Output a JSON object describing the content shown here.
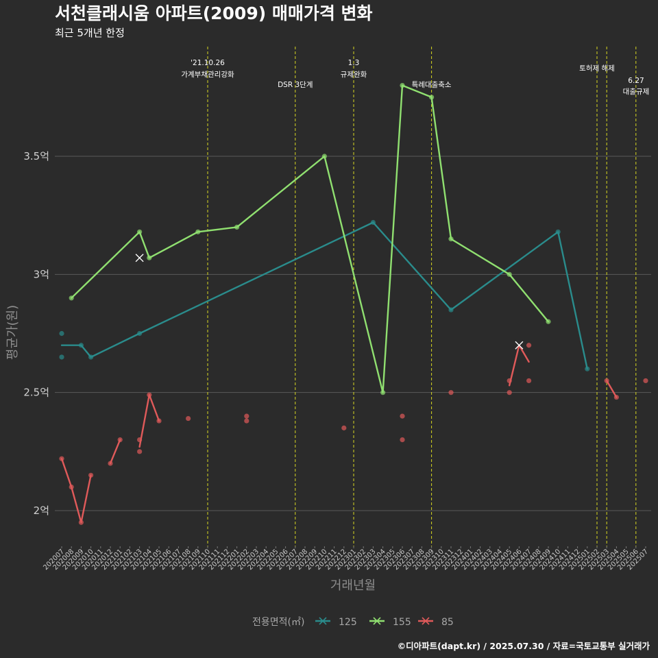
{
  "header": {
    "title": "서천클래시움 아파트(2009) 매매가격 변화",
    "subtitle": "최근 5개년 한정"
  },
  "caption": "©디아파트(dapt.kr) / 2025.07.30 / 자료=국토교통부 실거래가",
  "legend": {
    "title": "전용면적(㎡)",
    "items": [
      {
        "label": "125",
        "color": "#2a8c8c"
      },
      {
        "label": "155",
        "color": "#90e070"
      },
      {
        "label": "85",
        "color": "#e05a5a"
      }
    ]
  },
  "chart_data": {
    "type": "line",
    "title": "서천클래시움 아파트(2009) 매매가격 변화",
    "subtitle": "최근 5개년 한정",
    "xlabel": "거래년월",
    "ylabel": "평균가(원)",
    "ylim": [
      1.85,
      3.92
    ],
    "y_ticks": [
      2.0,
      2.5,
      3.0,
      3.5
    ],
    "y_tick_labels": [
      "2억",
      "2.5억",
      "3억",
      "3.5억"
    ],
    "grid": true,
    "legend_position": "bottom",
    "categories": [
      "202007",
      "202008",
      "202009",
      "202010",
      "202011",
      "202012",
      "202101",
      "202102",
      "202103",
      "202104",
      "202105",
      "202106",
      "202107",
      "202108",
      "202109",
      "202110",
      "202111",
      "202112",
      "202201",
      "202202",
      "202203",
      "202204",
      "202205",
      "202206",
      "202207",
      "202208",
      "202209",
      "202210",
      "202211",
      "202212",
      "202301",
      "202302",
      "202303",
      "202304",
      "202305",
      "202306",
      "202307",
      "202308",
      "202309",
      "202310",
      "202311",
      "202312",
      "202401",
      "202402",
      "202403",
      "202404",
      "202405",
      "202406",
      "202407",
      "202408",
      "202409",
      "202410",
      "202411",
      "202412",
      "202501",
      "202502",
      "202503",
      "202504",
      "202505",
      "202506",
      "202507"
    ],
    "series": [
      {
        "name": "125",
        "color": "#2a8c8c",
        "line": [
          [
            "202007",
            2.7
          ],
          [
            "202008",
            2.7
          ],
          [
            "202009",
            2.7
          ],
          [
            "202010",
            2.65
          ],
          [
            "202103",
            2.75
          ],
          [
            "202303",
            3.22
          ],
          [
            "202311",
            2.85
          ],
          [
            "202410",
            3.18
          ],
          [
            "202501",
            2.6
          ]
        ],
        "points": [
          [
            "202007",
            2.75
          ],
          [
            "202007",
            2.65
          ],
          [
            "202009",
            2.7
          ],
          [
            "202010",
            2.65
          ],
          [
            "202103",
            2.75
          ],
          [
            "202303",
            3.22
          ],
          [
            "202311",
            2.85
          ],
          [
            "202410",
            3.18
          ],
          [
            "202501",
            2.6
          ]
        ],
        "crosses": []
      },
      {
        "name": "155",
        "color": "#90e070",
        "line": [
          [
            "202008",
            2.9
          ],
          [
            "202103",
            3.18
          ],
          [
            "202104",
            3.07
          ],
          [
            "202109",
            3.18
          ],
          [
            "202201",
            3.2
          ],
          [
            "202210",
            3.5
          ],
          [
            "202304",
            2.5
          ],
          [
            "202306",
            3.8
          ],
          [
            "202309",
            3.75
          ],
          [
            "202311",
            3.15
          ],
          [
            "202405",
            3.0
          ],
          [
            "202409",
            2.8
          ]
        ],
        "points": [
          [
            "202008",
            2.9
          ],
          [
            "202103",
            3.18
          ],
          [
            "202104",
            3.07
          ],
          [
            "202109",
            3.18
          ],
          [
            "202201",
            3.2
          ],
          [
            "202210",
            3.5
          ],
          [
            "202304",
            2.5
          ],
          [
            "202306",
            3.8
          ],
          [
            "202309",
            3.75
          ],
          [
            "202311",
            3.15
          ],
          [
            "202405",
            3.0
          ],
          [
            "202409",
            2.8
          ]
        ],
        "crosses": [
          [
            "202103",
            3.07
          ]
        ]
      },
      {
        "name": "85",
        "color": "#e05a5a",
        "segments": [
          [
            [
              "202007",
              2.22
            ],
            [
              "202008",
              2.1
            ],
            [
              "202009",
              1.95
            ],
            [
              "202010",
              2.15
            ]
          ],
          [
            [
              "202012",
              2.2
            ],
            [
              "202101",
              2.3
            ]
          ],
          [
            [
              "202103",
              2.27
            ],
            [
              "202104",
              2.49
            ],
            [
              "202105",
              2.38
            ]
          ],
          [
            [
              "202405",
              2.53
            ],
            [
              "202406",
              2.7
            ],
            [
              "202407",
              2.63
            ]
          ],
          [
            [
              "202503",
              2.55
            ],
            [
              "202504",
              2.48
            ]
          ]
        ],
        "points": [
          [
            "202007",
            2.22
          ],
          [
            "202008",
            2.1
          ],
          [
            "202009",
            1.95
          ],
          [
            "202010",
            2.15
          ],
          [
            "202012",
            2.2
          ],
          [
            "202101",
            2.3
          ],
          [
            "202103",
            2.3
          ],
          [
            "202103",
            2.25
          ],
          [
            "202104",
            2.49
          ],
          [
            "202105",
            2.38
          ],
          [
            "202108",
            2.39
          ],
          [
            "202202",
            2.4
          ],
          [
            "202202",
            2.38
          ],
          [
            "202212",
            2.35
          ],
          [
            "202306",
            2.4
          ],
          [
            "202306",
            2.3
          ],
          [
            "202311",
            2.5
          ],
          [
            "202405",
            2.55
          ],
          [
            "202405",
            2.5
          ],
          [
            "202407",
            2.7
          ],
          [
            "202407",
            2.55
          ],
          [
            "202503",
            2.55
          ],
          [
            "202504",
            2.48
          ],
          [
            "202507",
            2.55
          ]
        ],
        "crosses": [
          [
            "202406",
            2.7
          ]
        ]
      }
    ],
    "events": [
      {
        "month": "202110",
        "label": [
          "'21.10.26",
          "가계부채관리강화"
        ],
        "row": 0
      },
      {
        "month": "202207",
        "label": [
          "DSR 3단계"
        ],
        "row": 1
      },
      {
        "month": "202301",
        "label": [
          "1.3",
          "규제완화"
        ],
        "row": 0
      },
      {
        "month": "202309",
        "label": [
          "특례대출축소"
        ],
        "row": 1
      },
      {
        "month": "202502",
        "label": [
          "토허제 해제"
        ],
        "row": 0
      },
      {
        "month": "202503",
        "label": [],
        "row": 0
      },
      {
        "month": "202506",
        "label": [
          "6.27",
          "대출규제"
        ],
        "row": 2
      }
    ]
  }
}
